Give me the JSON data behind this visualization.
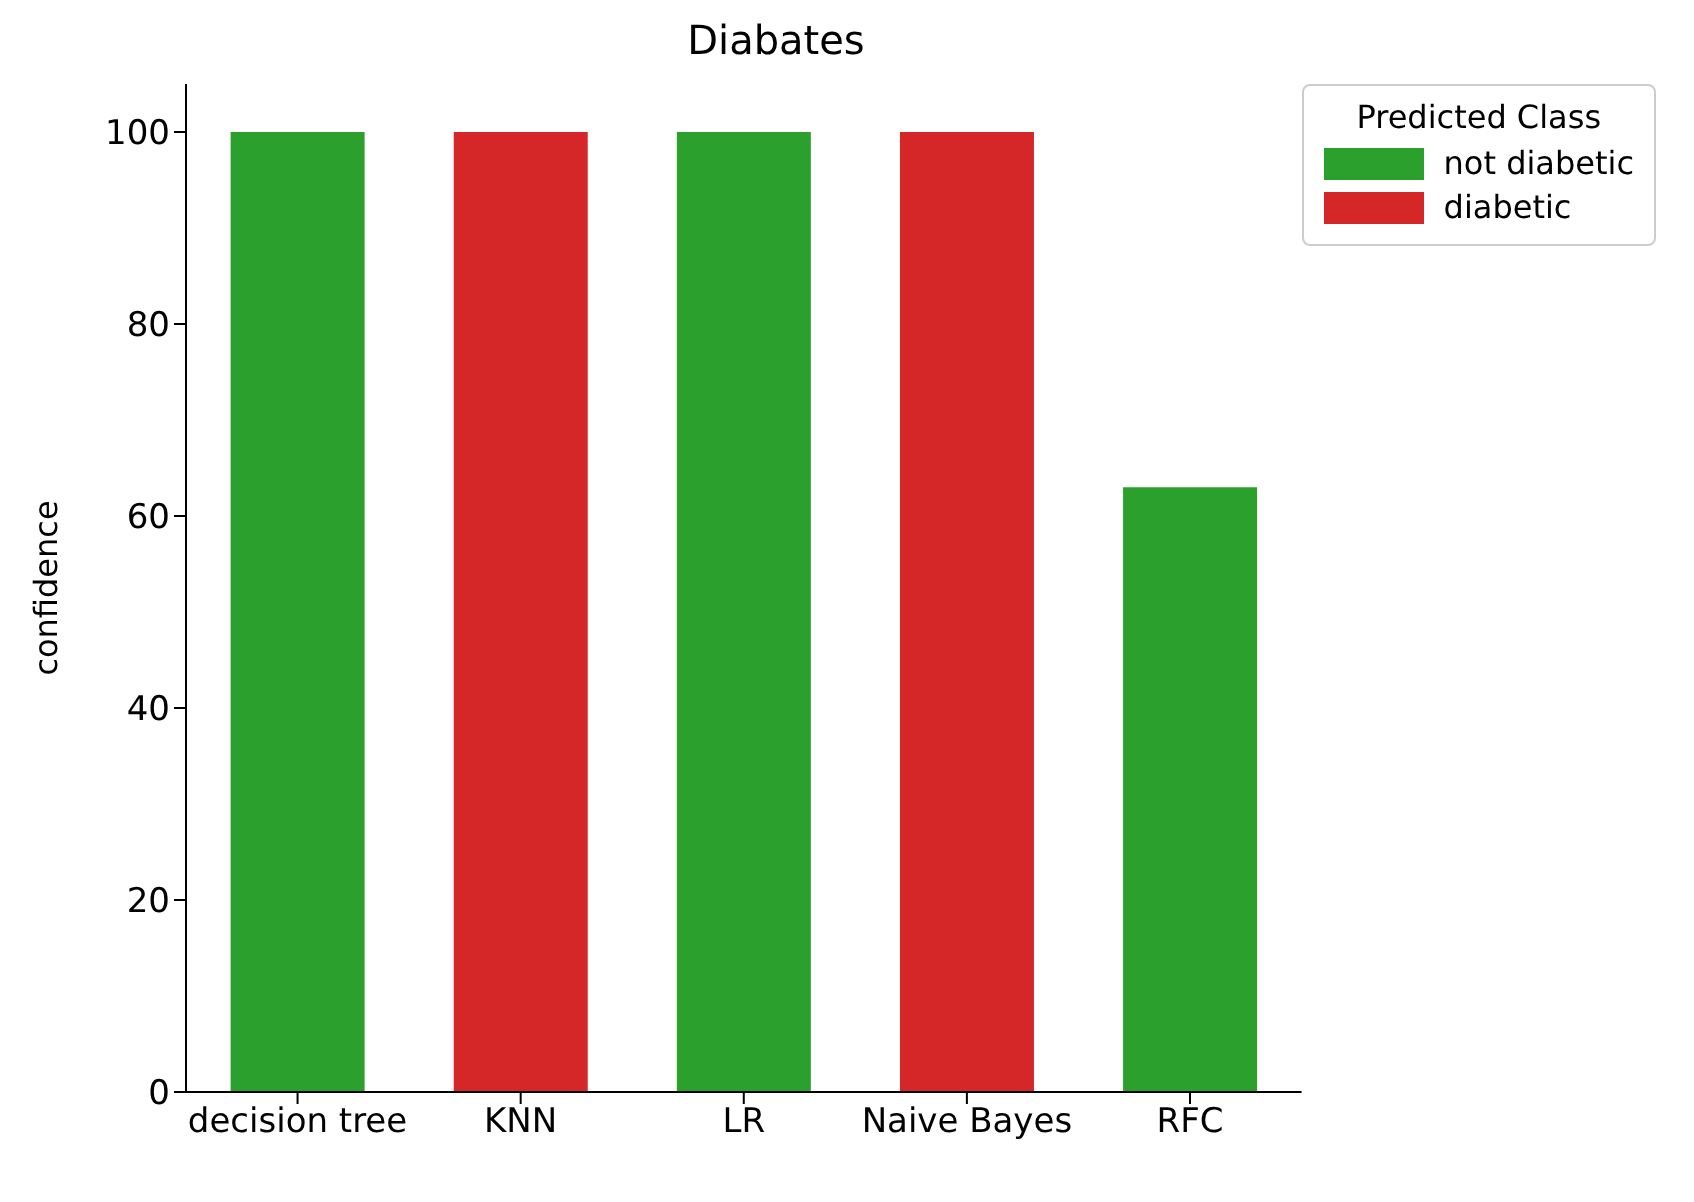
{
  "chart_data": {
    "type": "bar",
    "title": "Diabates",
    "ylabel": "confidence",
    "legend_title": "Predicted Class",
    "categories": [
      "decision tree",
      "KNN",
      "LR",
      "Naive Bayes",
      "RFC"
    ],
    "series": [
      {
        "name": "not diabetic",
        "color": "#2ca02c",
        "values": [
          100,
          null,
          100,
          null,
          63
        ]
      },
      {
        "name": "diabetic",
        "color": "#d62728",
        "values": [
          null,
          100,
          null,
          100,
          null
        ]
      }
    ],
    "stacked": true,
    "ylim": [
      0,
      105
    ],
    "yticks": [
      0,
      20,
      40,
      60,
      80,
      100
    ],
    "grid": false,
    "legend": "top right"
  }
}
